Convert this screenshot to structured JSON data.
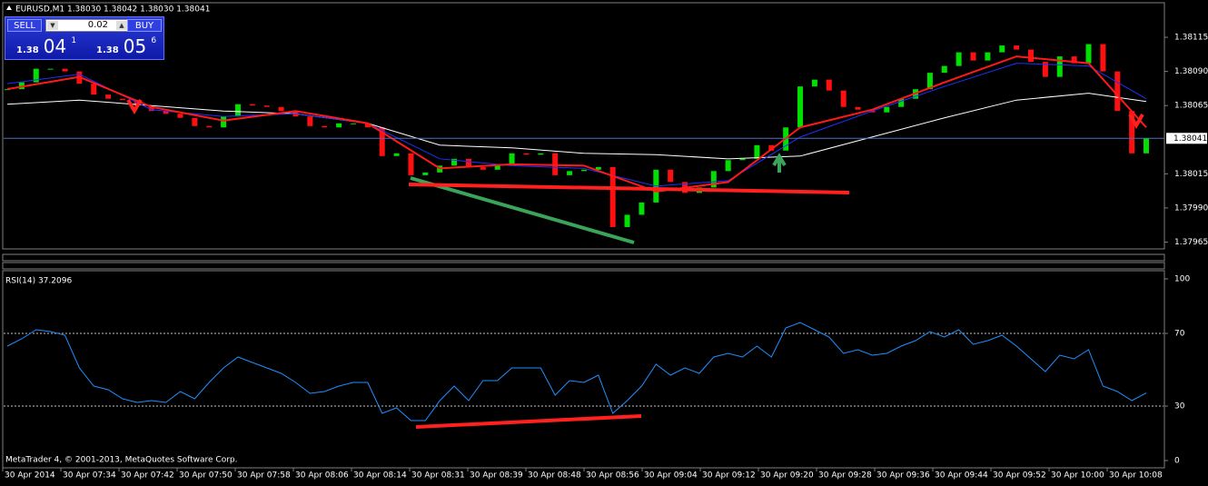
{
  "header": {
    "symbol_line": "EURUSD,M1  1.38030 1.38042 1.38030 1.38041"
  },
  "trade_panel": {
    "sell": "SELL",
    "buy": "BUY",
    "lot": "0.02",
    "sell_price": {
      "prefix": "1.38",
      "big": "04",
      "sup": "1"
    },
    "buy_price": {
      "prefix": "1.38",
      "big": "05",
      "sup": "6"
    }
  },
  "price_chart": {
    "type": "candlestick",
    "ylim": [
      1.3796,
      1.38139
    ],
    "yticks": [
      1.38115,
      {
        "value": 1.3809,
        "label": "1.38090"
      },
      1.38065,
      1.38015,
      {
        "value": 1.3799,
        "label": "1.37990"
      },
      1.37965
    ],
    "current_price": 1.38041,
    "up_color": "#00e000",
    "down_color": "#ff1010",
    "close": [
      1.38077,
      1.38082,
      1.38092,
      1.38092,
      1.3809,
      1.38081,
      1.38073,
      1.3807,
      1.38069,
      1.38065,
      1.38061,
      1.38059,
      1.38056,
      1.3805,
      1.38049,
      1.38057,
      1.38066,
      1.38065,
      1.38064,
      1.38061,
      1.38057,
      1.3805,
      1.38049,
      1.38052,
      1.38052,
      1.38049,
      1.38028,
      1.3803,
      1.38014,
      1.38016,
      1.38021,
      1.38026,
      1.3802,
      1.38018,
      1.38022,
      1.3803,
      1.38029,
      1.3803,
      1.38014,
      1.38017,
      1.38018,
      1.3802,
      1.37976,
      1.37985,
      1.37994,
      1.38018,
      1.38009,
      1.38001,
      1.38005,
      1.38017,
      1.38025,
      1.38026,
      1.38036,
      1.38032,
      1.38049,
      1.38079,
      1.38084,
      1.38076,
      1.38064,
      1.38062,
      1.3806,
      1.38064,
      1.3807,
      1.38077,
      1.38089,
      1.38094,
      1.38104,
      1.38098,
      1.38104,
      1.38109,
      1.38106,
      1.38097,
      1.38086,
      1.38101,
      1.38096,
      1.3811,
      1.3809,
      1.38061,
      1.3803,
      1.38041
    ],
    "ma_index": [
      0,
      5,
      10,
      15,
      20,
      25,
      30,
      35,
      40,
      45,
      50,
      55,
      60,
      65,
      70,
      75,
      79
    ],
    "moving_averages": [
      {
        "color": "#ffffff",
        "values": [
          1.38066,
          1.38069,
          1.38065,
          1.38061,
          1.38059,
          1.38052,
          1.38036,
          1.38034,
          1.3803,
          1.38029,
          1.38026,
          1.38028,
          1.38042,
          1.38056,
          1.38069,
          1.38074,
          1.38068
        ]
      },
      {
        "color": "#2030ff",
        "values": [
          1.38081,
          1.38088,
          1.38062,
          1.38057,
          1.38059,
          1.38052,
          1.38026,
          1.38021,
          1.38019,
          1.38006,
          1.3801,
          1.38042,
          1.38061,
          1.38079,
          1.38096,
          1.38094,
          1.3807
        ]
      },
      {
        "color": "#ff1a1a",
        "values": [
          1.38077,
          1.38086,
          1.38064,
          1.38054,
          1.38061,
          1.38052,
          1.38019,
          1.38022,
          1.38021,
          1.38002,
          1.38009,
          1.38049,
          1.38062,
          1.38082,
          1.38101,
          1.38096,
          1.38049
        ]
      }
    ],
    "x_labels": [
      "30 Apr 2014",
      "30 Apr 07:34",
      "30 Apr 07:42",
      "30 Apr 07:50",
      "30 Apr 07:58",
      "30 Apr 08:06",
      "30 Apr 08:14",
      "30 Apr 08:31",
      "30 Apr 08:39",
      "30 Apr 08:48",
      "30 Apr 08:56",
      "30 Apr 09:04",
      "30 Apr 09:12",
      "30 Apr 09:20",
      "30 Apr 09:28",
      "30 Apr 09:36",
      "30 Apr 09:44",
      "30 Apr 09:52",
      "30 Apr 10:00",
      "30 Apr 10:08"
    ]
  },
  "rsi_chart": {
    "type": "line",
    "title": "RSI(14) 37.2096",
    "ylim": [
      -4,
      104.5
    ],
    "yticks": [
      0,
      30,
      70,
      100
    ],
    "levels": [
      30,
      70
    ],
    "color": "#1e90ff",
    "values": [
      63,
      67,
      72,
      71,
      69,
      51,
      41,
      39,
      34,
      32,
      33,
      32,
      38,
      34,
      43,
      51,
      57,
      54,
      51,
      48,
      43,
      37,
      38,
      41,
      43,
      43,
      26,
      29,
      22,
      22,
      33,
      41,
      33,
      44,
      44,
      51,
      51,
      51,
      36,
      44,
      43,
      47,
      26,
      33,
      41,
      53,
      47,
      51,
      48,
      57,
      59,
      57,
      63,
      57,
      73,
      76,
      72,
      68,
      59,
      61,
      58,
      59,
      63,
      66,
      71,
      68,
      72,
      64,
      66,
      69,
      63,
      56,
      49,
      58,
      56,
      61,
      41,
      38,
      33,
      37.2
    ]
  },
  "footer": "MetaTrader 4, © 2001-2013, MetaQuotes Software Corp."
}
